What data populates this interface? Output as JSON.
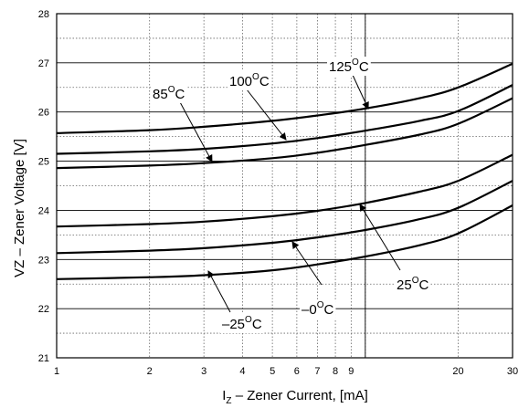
{
  "chart_data": {
    "type": "line",
    "title": "",
    "xlabel": {
      "main": "I",
      "sub": "Z",
      "rest": " – Zener Current, [mA]"
    },
    "ylabel": "VZ –  Zener Voltage [V]",
    "x_scale": "log",
    "xlim": [
      1,
      30
    ],
    "ylim": [
      21,
      28
    ],
    "x_ticks": [
      1,
      2,
      3,
      4,
      5,
      6,
      7,
      8,
      9,
      20,
      30
    ],
    "x_tick_labels": [
      "1",
      "2",
      "3",
      "4",
      "5",
      "6",
      "7",
      "8",
      "9",
      "20",
      "30"
    ],
    "y_ticks": [
      21,
      22,
      23,
      24,
      25,
      26,
      27,
      28
    ],
    "y_tick_labels": [
      "21",
      "22",
      "23",
      "24",
      "25",
      "26",
      "27",
      "28"
    ],
    "grid": true,
    "series": [
      {
        "name": "125°C",
        "x": [
          1,
          2,
          3,
          5,
          7,
          10,
          15,
          20,
          30
        ],
        "y": [
          25.57,
          25.63,
          25.7,
          25.82,
          25.93,
          26.07,
          26.28,
          26.5,
          26.98
        ]
      },
      {
        "name": "100°C",
        "x": [
          1,
          2,
          3,
          5,
          7,
          10,
          15,
          20,
          30
        ],
        "y": [
          25.15,
          25.2,
          25.25,
          25.36,
          25.47,
          25.62,
          25.82,
          26.02,
          26.55
        ]
      },
      {
        "name": "85°C",
        "x": [
          1,
          2,
          3,
          5,
          7,
          10,
          15,
          20,
          30
        ],
        "y": [
          24.86,
          24.91,
          24.96,
          25.06,
          25.17,
          25.33,
          25.54,
          25.76,
          26.28
        ]
      },
      {
        "name": "25°C",
        "x": [
          1,
          2,
          3,
          5,
          7,
          10,
          15,
          20,
          30
        ],
        "y": [
          23.67,
          23.72,
          23.77,
          23.88,
          23.99,
          24.15,
          24.38,
          24.6,
          25.13
        ]
      },
      {
        "name": "–0°C",
        "x": [
          1,
          2,
          3,
          5,
          7,
          10,
          15,
          20,
          30
        ],
        "y": [
          23.13,
          23.18,
          23.23,
          23.34,
          23.45,
          23.6,
          23.82,
          24.05,
          24.6
        ]
      },
      {
        "name": "–25°C",
        "x": [
          1,
          2,
          3,
          5,
          7,
          10,
          15,
          20,
          30
        ],
        "y": [
          22.6,
          22.64,
          22.68,
          22.78,
          22.9,
          23.06,
          23.29,
          23.53,
          24.1
        ]
      }
    ],
    "annotations": [
      {
        "label": "125",
        "unit": "C",
        "deg": "O",
        "target_x": 10.5,
        "target_y": 26.08
      },
      {
        "label": "100",
        "unit": "C",
        "deg": "O",
        "target_x": 5.7,
        "target_y": 25.4
      },
      {
        "label": "85",
        "unit": "C",
        "deg": "O",
        "target_x": 3.2,
        "target_y": 24.97
      },
      {
        "label": "25",
        "unit": "C",
        "deg": "O",
        "target_x": 10.5,
        "target_y": 24.17
      },
      {
        "label": "–0",
        "unit": "C",
        "deg": "O",
        "target_x": 5.2,
        "target_y": 23.36
      },
      {
        "label": "–25",
        "unit": "C",
        "deg": "O",
        "target_x": 3.2,
        "target_y": 22.7
      }
    ]
  }
}
